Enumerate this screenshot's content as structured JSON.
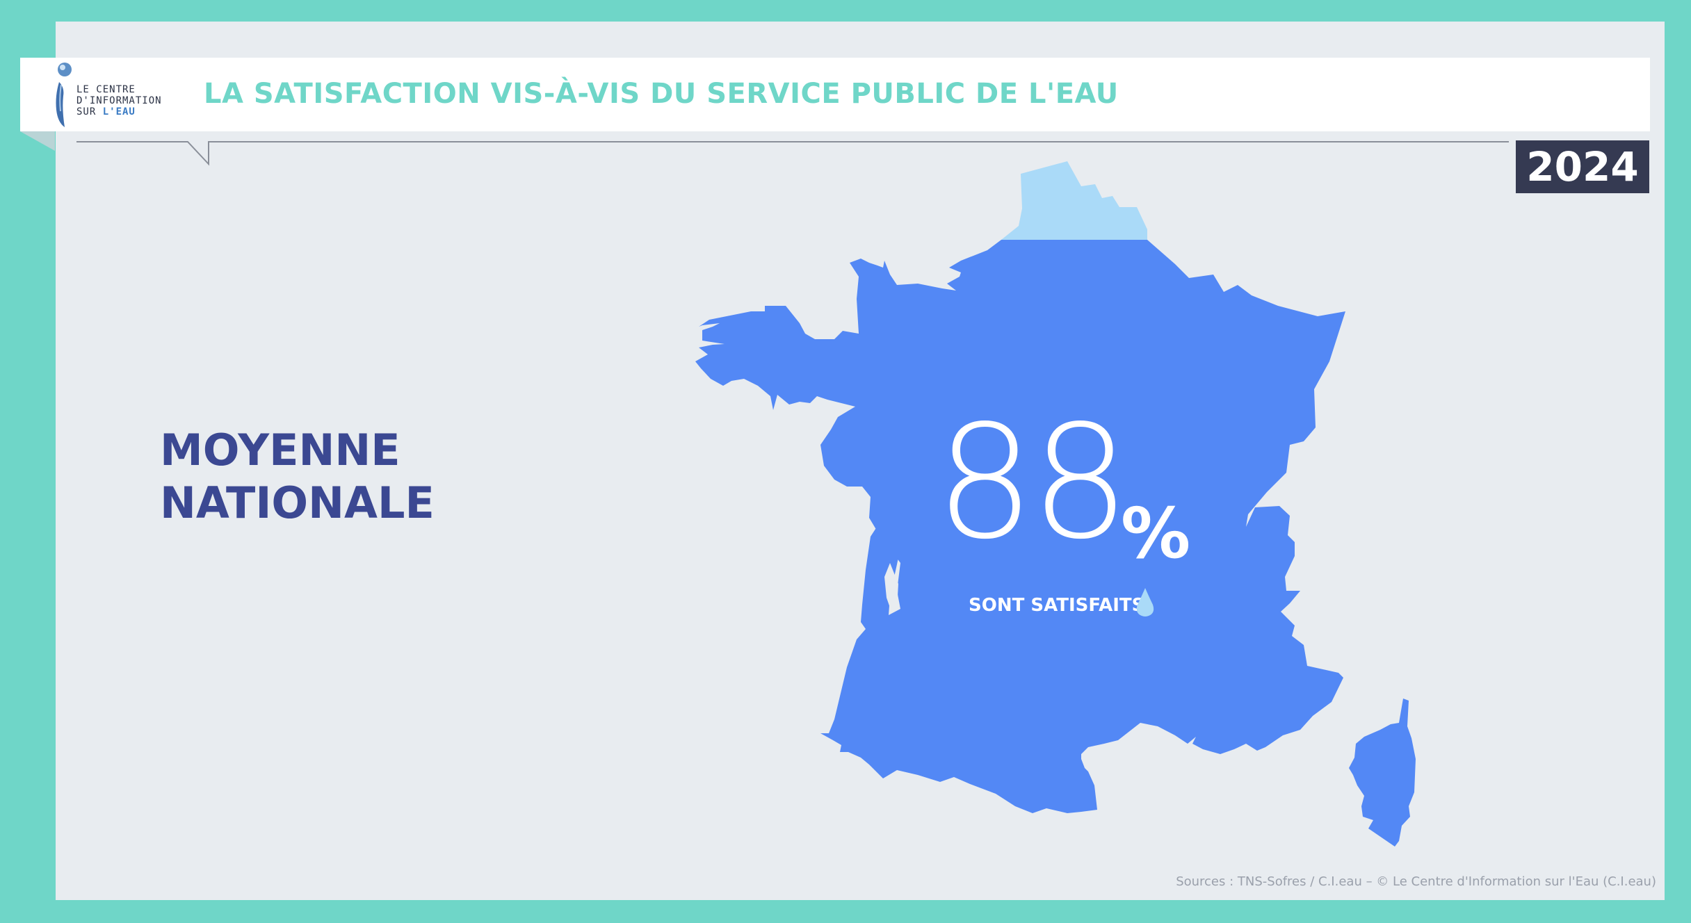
{
  "colors": {
    "frame": "#6fd6c8",
    "panel": "#e8ecf0",
    "title": "#6fd6c8",
    "map_main": "#5388f5",
    "map_north": "#aadaf8",
    "label": "#3b4892",
    "badge": "#353a52"
  },
  "logo": {
    "line1": "LE CENTRE",
    "line2": "D'INFORMATION",
    "line3_prefix": "SUR ",
    "line3_accent": "L'EAU",
    "icon": "water-drop-i-icon"
  },
  "header": {
    "title": "LA SATISFACTION VIS-À-VIS DU SERVICE PUBLIC DE L'EAU"
  },
  "year": "2024",
  "label": {
    "line1": "MOYENNE",
    "line2": "NATIONALE"
  },
  "stat": {
    "value": "88",
    "unit": "%",
    "caption": "SONT SATISFAITS",
    "caption_icon": "water-drop-icon"
  },
  "map": {
    "region": "France",
    "icon": "france-map-icon"
  },
  "footer": {
    "sources": "Sources : TNS-Sofres / C.I.eau – © Le Centre d'Information sur l'Eau (C.I.eau)"
  }
}
